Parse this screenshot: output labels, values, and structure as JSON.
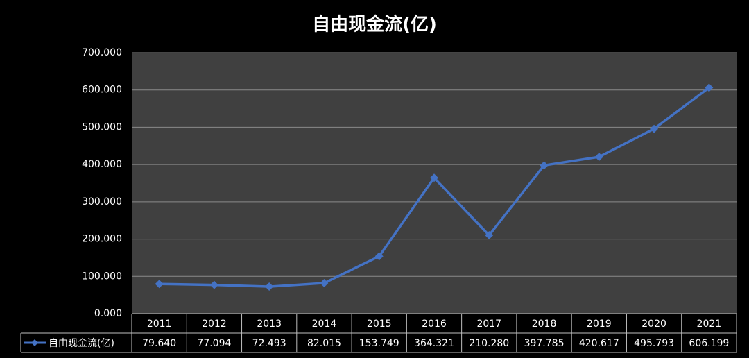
{
  "chart_data": {
    "type": "line",
    "title": "自由现金流(亿)",
    "categories": [
      "2011",
      "2012",
      "2013",
      "2014",
      "2015",
      "2016",
      "2017",
      "2018",
      "2019",
      "2020",
      "2021"
    ],
    "series": [
      {
        "name": "自由现金流(亿)",
        "color": "#4472c4",
        "values": [
          79.64,
          77.094,
          72.493,
          82.015,
          153.749,
          364.321,
          210.28,
          397.785,
          420.617,
          495.793,
          606.199
        ],
        "value_labels": [
          "79.640",
          "77.094",
          "72.493",
          "82.015",
          "153.749",
          "364.321",
          "210.280",
          "397.785",
          "420.617",
          "495.793",
          "606.199"
        ]
      }
    ],
    "ylim": [
      0,
      700
    ],
    "yticks": [
      {
        "value": 0,
        "label": "0.000"
      },
      {
        "value": 100,
        "label": "100.000"
      },
      {
        "value": 200,
        "label": "200.000"
      },
      {
        "value": 300,
        "label": "300.000"
      },
      {
        "value": 400,
        "label": "400.000"
      },
      {
        "value": 500,
        "label": "500.000"
      },
      {
        "value": 600,
        "label": "600.000"
      },
      {
        "value": 700,
        "label": "700.000"
      }
    ],
    "grid": true
  }
}
